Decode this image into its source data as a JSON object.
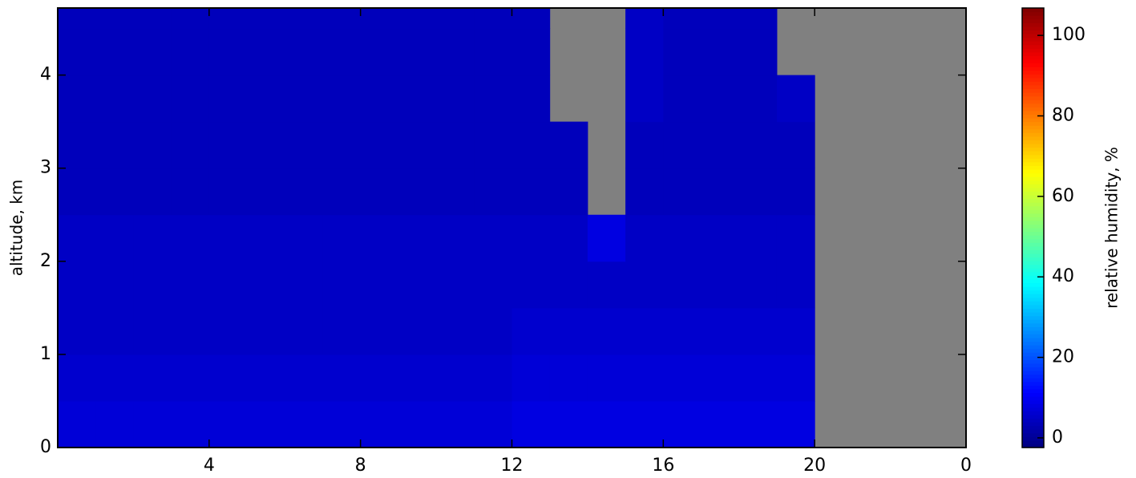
{
  "chart_data": {
    "type": "heatmap",
    "x": [
      0,
      1,
      2,
      3,
      4,
      5,
      6,
      7,
      8,
      9,
      10,
      11,
      12,
      13,
      14,
      15,
      16,
      17,
      18,
      19,
      20,
      21,
      22,
      23,
      24
    ],
    "y": [
      0,
      0.5,
      1,
      1.5,
      2,
      2.5,
      3,
      3.5,
      4,
      4.5,
      4.72
    ],
    "z": [
      [
        7,
        7,
        7,
        7,
        7,
        7,
        7,
        7,
        7,
        7,
        7,
        7,
        8,
        8,
        8,
        8,
        8,
        8,
        8,
        8,
        null,
        null,
        null,
        null
      ],
      [
        6,
        6,
        6,
        6,
        6,
        6,
        6,
        6,
        6,
        6,
        6,
        6,
        7,
        7,
        7,
        7,
        7,
        7,
        7,
        7,
        null,
        null,
        null,
        null
      ],
      [
        5,
        5,
        5,
        5,
        5,
        5,
        5,
        5,
        5,
        5,
        5,
        5,
        6,
        6,
        6,
        6,
        6,
        6,
        6,
        6,
        null,
        null,
        null,
        null
      ],
      [
        5,
        5,
        5,
        5,
        5,
        5,
        5,
        5,
        5,
        5,
        5,
        5,
        5,
        5,
        5,
        5,
        5,
        5,
        5,
        5,
        null,
        null,
        null,
        null
      ],
      [
        5,
        5,
        5,
        5,
        5,
        5,
        5,
        5,
        5,
        5,
        5,
        5,
        5,
        5,
        8,
        5,
        5,
        5,
        5,
        5,
        null,
        null,
        null,
        null
      ],
      [
        4,
        4,
        4,
        4,
        4,
        4,
        4,
        4,
        4,
        4,
        4,
        4,
        4,
        4,
        null,
        4,
        4,
        4,
        4,
        4,
        null,
        null,
        null,
        null
      ],
      [
        4,
        4,
        4,
        4,
        4,
        4,
        4,
        4,
        4,
        4,
        4,
        4,
        4,
        4,
        null,
        4,
        4,
        4,
        4,
        4,
        null,
        null,
        null,
        null
      ],
      [
        4,
        4,
        4,
        4,
        4,
        4,
        4,
        4,
        4,
        4,
        4,
        4,
        4,
        null,
        null,
        5,
        4,
        4,
        4,
        5,
        null,
        null,
        null,
        null
      ],
      [
        4,
        4,
        4,
        4,
        4,
        4,
        4,
        4,
        4,
        4,
        4,
        4,
        4,
        null,
        null,
        5,
        4,
        4,
        4,
        null,
        null,
        null,
        null,
        null
      ],
      [
        4,
        4,
        4,
        4,
        4,
        4,
        4,
        4,
        4,
        4,
        4,
        4,
        4,
        null,
        null,
        5,
        4,
        4,
        4,
        null,
        null,
        null,
        null,
        null
      ]
    ],
    "colormap": "jet",
    "missing_color": "#808080",
    "xlim": [
      0,
      24
    ],
    "xticks": [
      4,
      8,
      12,
      16,
      20,
      {
        "value": 24,
        "label": "0"
      }
    ],
    "ylim": [
      0,
      4.72
    ],
    "yticks": [
      0,
      1,
      2,
      3,
      4
    ],
    "ylabel": "altitude, km",
    "clim": [
      -2.4,
      106.8
    ],
    "cticks": [
      0,
      20,
      40,
      60,
      80,
      100
    ],
    "colorbar_label": "relative humidity, %"
  }
}
